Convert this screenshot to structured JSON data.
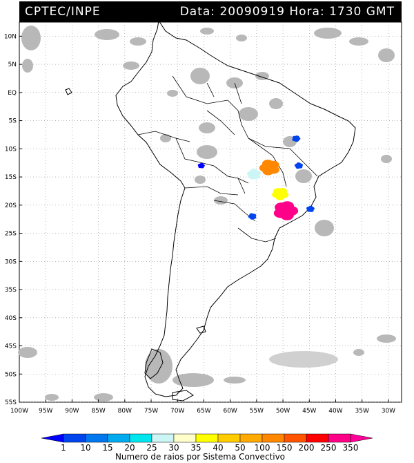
{
  "header": {
    "left": "CPTEC/INPE",
    "right": "Data: 20090919  Hora: 1730 GMT"
  },
  "lat_labels": [
    "10N",
    "5N",
    "EQ",
    "5S",
    "10S",
    "15S",
    "20S",
    "25S",
    "30S",
    "35S",
    "40S",
    "45S",
    "50S",
    "55S"
  ],
  "lon_labels": [
    "100W",
    "95W",
    "90W",
    "85W",
    "80W",
    "75W",
    "70W",
    "65W",
    "60W",
    "55W",
    "50W",
    "45W",
    "40W",
    "35W",
    "30W"
  ],
  "legend": {
    "title": "Numero de raios por Sistema Convectivo",
    "ticks": [
      "1",
      "10",
      "15",
      "20",
      "25",
      "30",
      "35",
      "40",
      "50",
      "100",
      "150",
      "200",
      "250",
      "350"
    ],
    "colors": [
      "#0000ff",
      "#0044ee",
      "#0077ee",
      "#00aaee",
      "#00e6ee",
      "#ccf5f5",
      "#ffffcc",
      "#ffff00",
      "#ffcc00",
      "#ffaa00",
      "#ff8800",
      "#ff5500",
      "#ff0000",
      "#ff0088",
      "#ff0099"
    ]
  },
  "systems": [
    {
      "lon": -47.5,
      "lat": -8.2,
      "level": 1
    },
    {
      "lon": -65.5,
      "lat": -13.0,
      "level": 0
    },
    {
      "lon": -55.5,
      "lat": -14.5,
      "level": 5
    },
    {
      "lon": -52.5,
      "lat": -13.3,
      "level": 10
    },
    {
      "lon": -50.5,
      "lat": -18.0,
      "level": 7
    },
    {
      "lon": -49.5,
      "lat": -21.0,
      "level": 13
    },
    {
      "lon": -44.8,
      "lat": -20.7,
      "level": 1
    },
    {
      "lon": -47.0,
      "lat": -13.0,
      "level": 1
    },
    {
      "lon": -55.8,
      "lat": -22.0,
      "level": 1
    }
  ]
}
